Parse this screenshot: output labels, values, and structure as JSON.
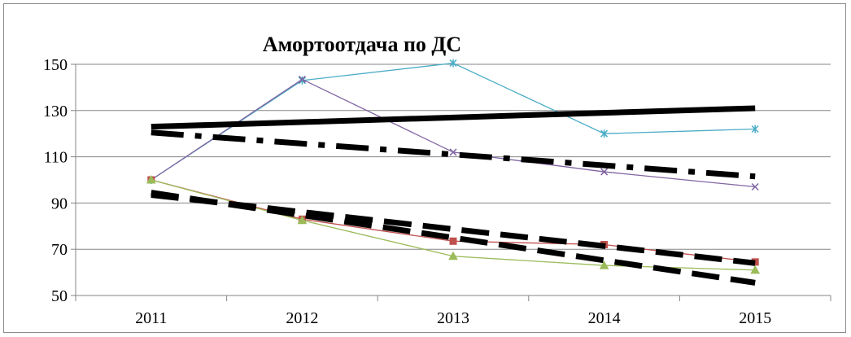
{
  "chart_data": {
    "type": "line",
    "title": "Амортоотдача по ДС",
    "xlabel": "",
    "ylabel": "",
    "categories": [
      "2011",
      "2012",
      "2013",
      "2014",
      "2015"
    ],
    "ylim": [
      50,
      150
    ],
    "yticks": [
      50,
      70,
      90,
      110,
      130,
      150
    ],
    "grid": true,
    "legend": "none",
    "series": [
      {
        "color": "#4bacc6",
        "marker": "star",
        "values": [
          100,
          143,
          150.5,
          120,
          122
        ]
      },
      {
        "color": "#8064a2",
        "marker": "x",
        "values": [
          100,
          143.5,
          112,
          103.5,
          97
        ]
      },
      {
        "color": "#c0504d",
        "marker": "square",
        "values": [
          100,
          83,
          73.5,
          72,
          64.5
        ]
      },
      {
        "color": "#9bbb59",
        "marker": "triangle",
        "values": [
          100,
          82.5,
          67,
          63,
          61
        ]
      }
    ],
    "trendlines": [
      {
        "style": "solid",
        "color": "#000000",
        "values": [
          123,
          125,
          127,
          129,
          131
        ]
      },
      {
        "style": "dash-dot",
        "color": "#000000",
        "values": [
          120.5,
          115.7,
          111,
          106.3,
          101.5
        ]
      },
      {
        "style": "dashed",
        "color": "#000000",
        "values": [
          93.5,
          86.1,
          78.7,
          71.4,
          64
        ]
      },
      {
        "style": "dashed",
        "color": "#000000",
        "values": [
          94.5,
          84.7,
          75,
          65.2,
          55.5
        ]
      }
    ]
  }
}
